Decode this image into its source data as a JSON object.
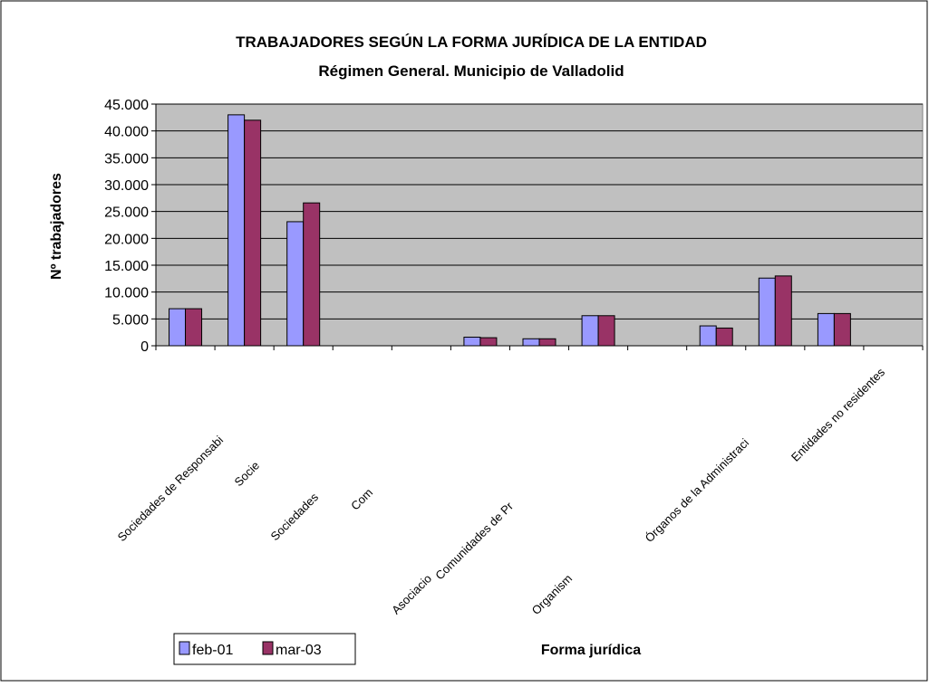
{
  "chart_data": {
    "type": "bar",
    "title": "TRABAJADORES SEGÚN LA FORMA JURÍDICA DE LA ENTIDAD",
    "subtitle": "Régimen General. Municipio de Valladolid",
    "ylabel": "Nº trabajadores",
    "xlabel": "Forma jurídica",
    "categories": [
      "Sociedades de Responsabi",
      "Socie",
      "Sociedades",
      "Com",
      "Asociacio",
      "Comunidades de Pr",
      "Organism",
      null,
      null,
      "Órganos de la Administraci",
      null,
      "Entidades no residentes",
      null
    ],
    "series": [
      {
        "name": "feb-01",
        "color": "#9999ff",
        "values": [
          6900,
          43000,
          23100,
          null,
          null,
          1600,
          1300,
          5600,
          null,
          3700,
          12600,
          6000,
          null
        ]
      },
      {
        "name": "mar-03",
        "color": "#993366",
        "values": [
          6900,
          42000,
          26600,
          null,
          null,
          1500,
          1300,
          5600,
          null,
          3300,
          13000,
          6000,
          null
        ]
      }
    ],
    "ylim": [
      0,
      45000
    ],
    "yticks": [
      0,
      {
        "value": 5000,
        "label": "5.000"
      },
      {
        "value": 10000,
        "label": "10.000"
      },
      {
        "value": 15000,
        "label": "15.000"
      },
      {
        "value": 20000,
        "label": "20.000"
      },
      {
        "value": 25000,
        "label": "25.000"
      },
      {
        "value": 30000,
        "label": "30.000"
      },
      {
        "value": 35000,
        "label": "35.000"
      },
      {
        "value": 40000,
        "label": "40.000"
      },
      {
        "value": 45000,
        "label": "45.000"
      }
    ],
    "grid": true,
    "legend": "bottom-left"
  }
}
